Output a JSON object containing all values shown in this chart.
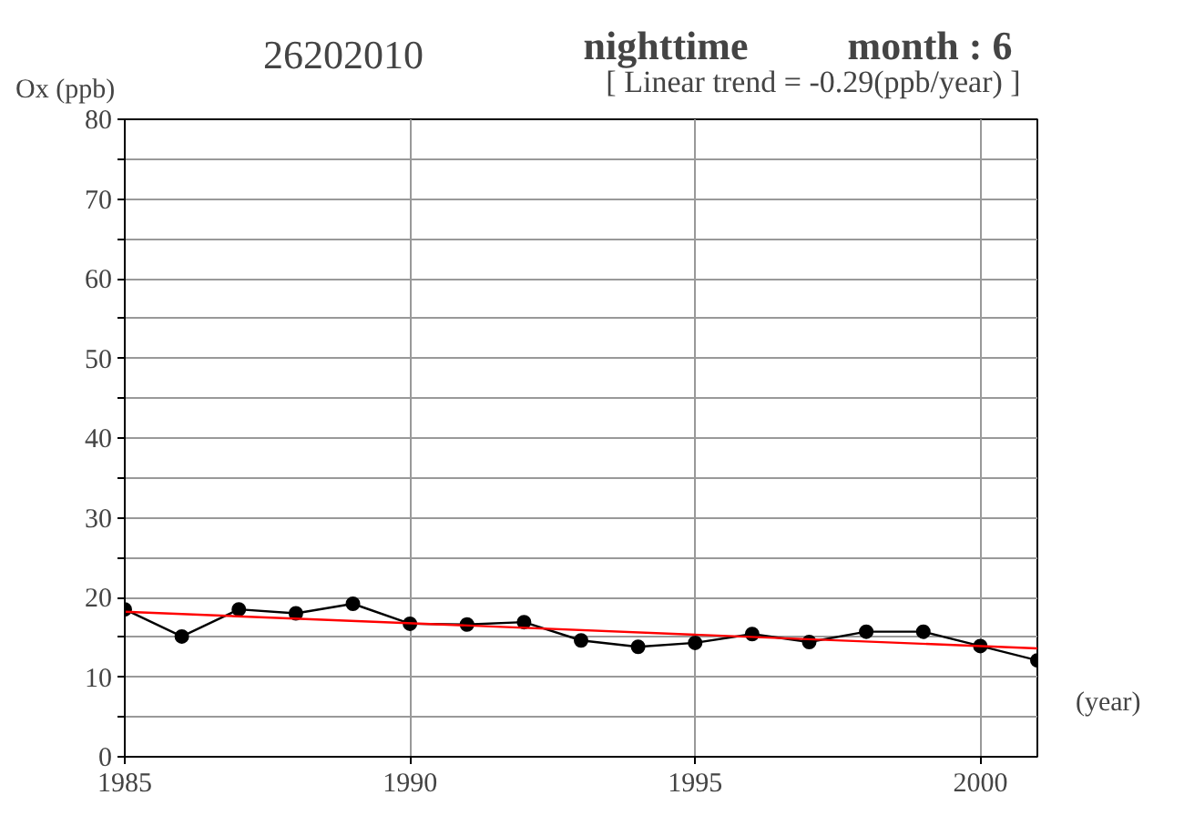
{
  "chart_data": {
    "type": "line",
    "title": "26202010",
    "subtitle": "nighttime",
    "annotations": [
      "month : 6",
      "[ Linear trend = -0.29(ppb/year) ]"
    ],
    "xlabel": "(year)",
    "ylabel": "Ox (ppb)",
    "x": [
      1985,
      1986,
      1987,
      1988,
      1989,
      1990,
      1991,
      1992,
      1993,
      1994,
      1995,
      1996,
      1997,
      1998,
      1999,
      2000,
      2001
    ],
    "series": [
      {
        "color": "#000000",
        "marker": "circle",
        "values": [
          18.5,
          15.1,
          18.5,
          18.0,
          19.2,
          16.7,
          16.6,
          16.9,
          14.6,
          13.8,
          14.3,
          15.4,
          14.4,
          15.7,
          15.7,
          13.9,
          12.1
        ]
      },
      {
        "type": "line",
        "color": "#ff0000",
        "marker": "none",
        "x": [
          1985,
          2001
        ],
        "values": [
          18.2,
          13.6
        ]
      }
    ],
    "xlim": [
      1985,
      2001
    ],
    "ylim": [
      0,
      80
    ],
    "xticks": [
      1985,
      1990,
      1995,
      2000
    ],
    "yticks": [
      0,
      {
        "value": 5,
        "label": null
      },
      10,
      {
        "value": 15,
        "label": null
      },
      20,
      {
        "value": 25,
        "label": null
      },
      30,
      {
        "value": 35,
        "label": null
      },
      40,
      {
        "value": 45,
        "label": null
      },
      50,
      {
        "value": 55,
        "label": null
      },
      60,
      {
        "value": 65,
        "label": null
      },
      70,
      {
        "value": 75,
        "label": null
      },
      80
    ],
    "grid": true,
    "line_style": "solid"
  }
}
